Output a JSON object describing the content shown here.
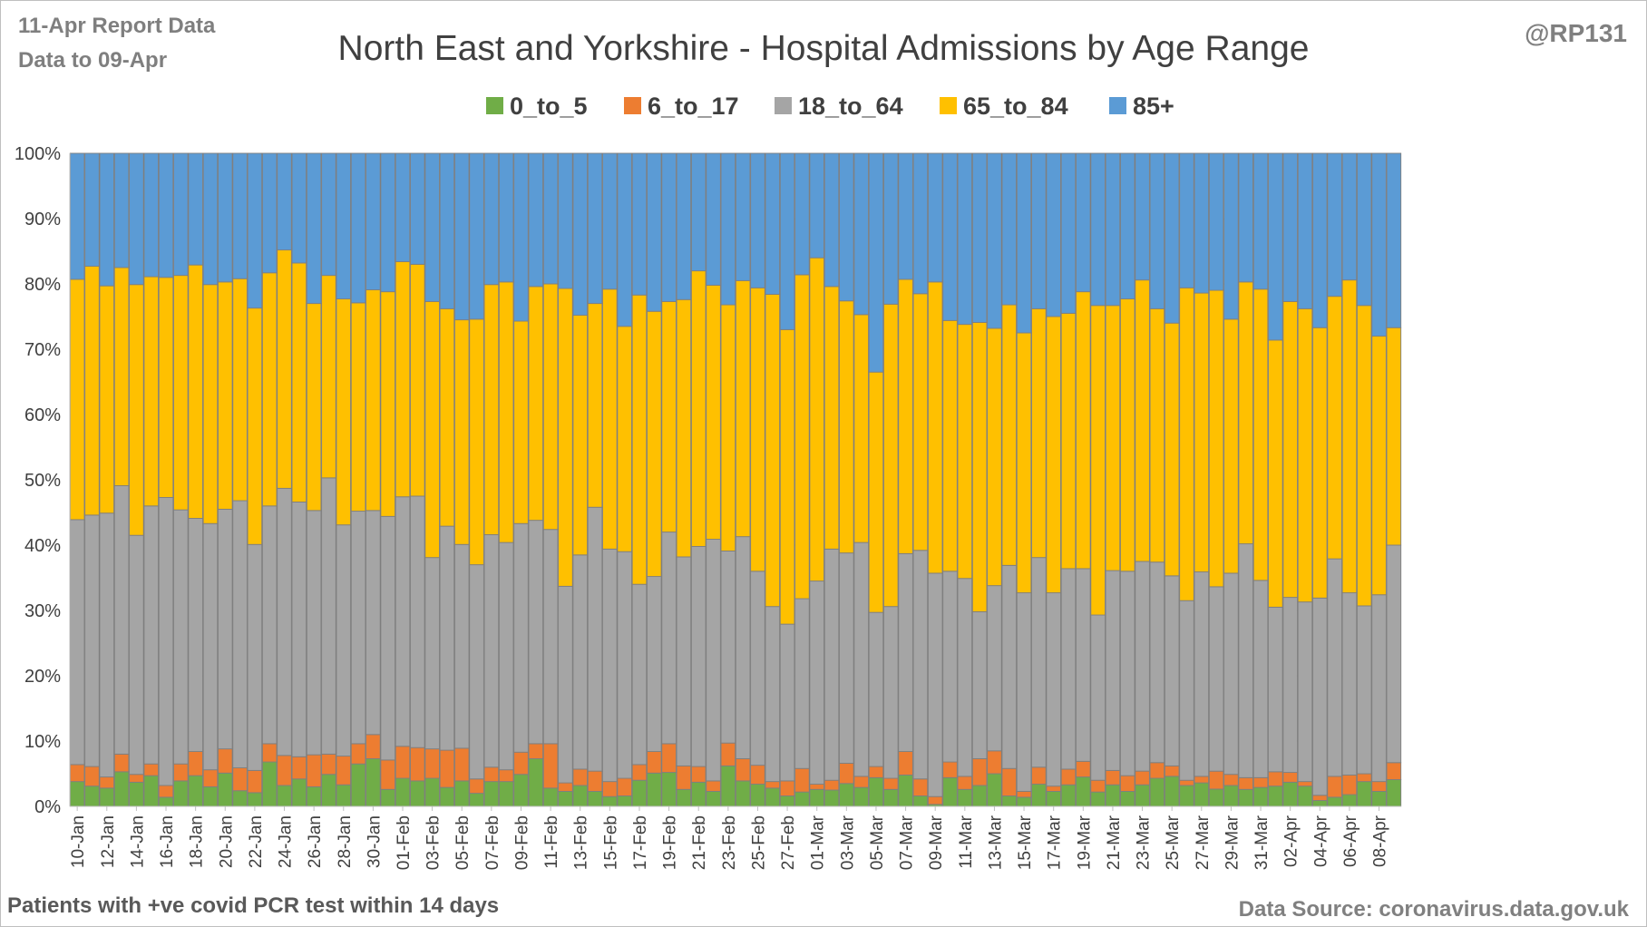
{
  "header": {
    "report_label": "11-Apr Report Data",
    "data_to_label": "Data to 09-Apr",
    "handle": "@RP131"
  },
  "footer": {
    "note": "Patients with  +ve covid PCR test within 14 days",
    "source": "Data Source: coronavirus.data.gov.uk"
  },
  "colors": {
    "0_to_5": "#70ad47",
    "6_to_17": "#ed7d31",
    "18_to_64": "#a5a5a5",
    "65_to_84": "#ffc000",
    "85+": "#5b9bd5"
  },
  "chart_data": {
    "type": "bar",
    "stacked": "percent",
    "title": "North East and Yorkshire - Hospital Admissions by Age Range",
    "legend_position": "top",
    "ylim": [
      0,
      100
    ],
    "y_ticks": [
      "0%",
      "10%",
      "20%",
      "30%",
      "40%",
      "50%",
      "60%",
      "70%",
      "80%",
      "90%",
      "100%"
    ],
    "grid": true,
    "categories": [
      "10-Jan",
      "11-Jan",
      "12-Jan",
      "13-Jan",
      "14-Jan",
      "15-Jan",
      "16-Jan",
      "17-Jan",
      "18-Jan",
      "19-Jan",
      "20-Jan",
      "21-Jan",
      "22-Jan",
      "23-Jan",
      "24-Jan",
      "25-Jan",
      "26-Jan",
      "27-Jan",
      "28-Jan",
      "29-Jan",
      "30-Jan",
      "31-Jan",
      "01-Feb",
      "02-Feb",
      "03-Feb",
      "04-Feb",
      "05-Feb",
      "06-Feb",
      "07-Feb",
      "08-Feb",
      "09-Feb",
      "10-Feb",
      "11-Feb",
      "12-Feb",
      "13-Feb",
      "14-Feb",
      "15-Feb",
      "16-Feb",
      "17-Feb",
      "18-Feb",
      "19-Feb",
      "20-Feb",
      "21-Feb",
      "22-Feb",
      "23-Feb",
      "24-Feb",
      "25-Feb",
      "26-Feb",
      "27-Feb",
      "28-Feb",
      "01-Mar",
      "02-Mar",
      "03-Mar",
      "04-Mar",
      "05-Mar",
      "06-Mar",
      "07-Mar",
      "08-Mar",
      "09-Mar",
      "10-Mar",
      "11-Mar",
      "12-Mar",
      "13-Mar",
      "14-Mar",
      "15-Mar",
      "16-Mar",
      "17-Mar",
      "18-Mar",
      "19-Mar",
      "20-Mar",
      "21-Mar",
      "22-Mar",
      "23-Mar",
      "24-Mar",
      "25-Mar",
      "26-Mar",
      "27-Mar",
      "28-Mar",
      "29-Mar",
      "30-Mar",
      "31-Mar",
      "01-Apr",
      "02-Apr",
      "03-Apr",
      "04-Apr",
      "05-Apr",
      "06-Apr",
      "07-Apr",
      "08-Apr",
      "09-Apr"
    ],
    "x_tick_labels": [
      "10-Jan",
      "12-Jan",
      "14-Jan",
      "16-Jan",
      "18-Jan",
      "20-Jan",
      "22-Jan",
      "24-Jan",
      "26-Jan",
      "28-Jan",
      "30-Jan",
      "01-Feb",
      "03-Feb",
      "05-Feb",
      "07-Feb",
      "09-Feb",
      "11-Feb",
      "13-Feb",
      "15-Feb",
      "17-Feb",
      "19-Feb",
      "21-Feb",
      "23-Feb",
      "25-Feb",
      "27-Feb",
      "01-Mar",
      "03-Mar",
      "05-Mar",
      "07-Mar",
      "09-Mar",
      "11-Mar",
      "13-Mar",
      "15-Mar",
      "17-Mar",
      "19-Mar",
      "21-Mar",
      "23-Mar",
      "25-Mar",
      "27-Mar",
      "29-Mar",
      "31-Mar",
      "02-Apr",
      "04-Apr",
      "06-Apr",
      "08-Apr"
    ],
    "series": [
      {
        "name": "0_to_5",
        "values": [
          3.8,
          3.1,
          2.8,
          5.3,
          3.7,
          4.7,
          1.4,
          3.9,
          4.7,
          3.0,
          5.1,
          2.4,
          2.1,
          6.8,
          3.2,
          4.2,
          3.0,
          4.9,
          3.3,
          6.5,
          7.3,
          2.6,
          4.3,
          3.9,
          4.3,
          2.9,
          3.9,
          2.0,
          3.8,
          3.8,
          4.9,
          7.3,
          2.8,
          2.3,
          3.2,
          2.3,
          1.5,
          1.6,
          4.0,
          5.1,
          5.2,
          2.6,
          3.7,
          2.3,
          6.2,
          3.9,
          3.4,
          2.8,
          1.6,
          2.2,
          2.6,
          2.5,
          3.5,
          2.9,
          4.4,
          2.6,
          4.8,
          1.6,
          0.3,
          4.4,
          2.6,
          3.2,
          5.0,
          1.6,
          1.4,
          3.4,
          2.3,
          3.3,
          4.5,
          2.2,
          3.3,
          2.3,
          3.3,
          4.3,
          4.6,
          3.2,
          3.6,
          2.7,
          3.2,
          2.6,
          2.9,
          3.1,
          3.7,
          3.1,
          0.9,
          1.4,
          1.8,
          3.8,
          2.3,
          4.1
        ]
      },
      {
        "name": "6_to_17",
        "values": [
          2.6,
          3.0,
          1.7,
          2.7,
          1.2,
          1.8,
          1.8,
          2.6,
          3.7,
          2.6,
          3.7,
          3.5,
          3.4,
          2.8,
          4.6,
          3.4,
          4.9,
          3.1,
          4.4,
          3.1,
          3.7,
          4.5,
          4.9,
          5.1,
          4.5,
          5.7,
          5.0,
          2.2,
          2.2,
          1.8,
          3.4,
          2.3,
          6.8,
          1.3,
          2.5,
          3.1,
          2.3,
          2.7,
          2.4,
          3.3,
          4.4,
          3.6,
          2.4,
          1.6,
          3.5,
          3.4,
          2.9,
          1.0,
          2.3,
          3.6,
          0.8,
          1.5,
          3.1,
          1.7,
          1.7,
          1.7,
          3.6,
          2.6,
          1.2,
          2.4,
          2.0,
          4.1,
          3.5,
          4.2,
          0.9,
          2.6,
          0.8,
          2.4,
          2.4,
          1.8,
          2.2,
          2.4,
          2.1,
          2.4,
          1.6,
          0.8,
          1.0,
          2.8,
          1.7,
          1.8,
          1.5,
          2.2,
          1.5,
          0.7,
          0.8,
          3.2,
          3.0,
          1.2,
          1.5,
          2.6
        ]
      },
      {
        "name": "18_to_64",
        "values": [
          37.5,
          38.5,
          40.4,
          41.1,
          36.6,
          39.5,
          44.1,
          38.9,
          35.7,
          37.7,
          36.7,
          40.9,
          34.6,
          36.4,
          40.9,
          39.0,
          37.4,
          42.3,
          35.4,
          35.6,
          34.3,
          37.3,
          38.2,
          38.5,
          29.3,
          34.3,
          31.2,
          32.8,
          35.6,
          34.8,
          35.0,
          34.2,
          32.8,
          30.1,
          32.8,
          40.4,
          35.6,
          34.7,
          27.6,
          26.8,
          32.4,
          32.0,
          33.7,
          37.0,
          29.4,
          34.0,
          29.7,
          26.8,
          24.0,
          26.0,
          31.1,
          35.4,
          32.2,
          35.8,
          23.6,
          26.3,
          30.3,
          35.0,
          34.2,
          29.2,
          30.3,
          22.5,
          25.3,
          31.1,
          30.4,
          32.1,
          29.6,
          30.7,
          29.5,
          25.3,
          30.6,
          31.3,
          32.1,
          30.7,
          29.1,
          27.5,
          31.3,
          28.8,
          30.8,
          35.8,
          30.2,
          25.2,
          26.8,
          27.5,
          30.2,
          33.3,
          27.9,
          25.7,
          28.6,
          33.3
        ]
      },
      {
        "name": "65_to_84",
        "values": [
          36.8,
          38.1,
          34.8,
          33.4,
          38.4,
          35.1,
          33.7,
          35.9,
          38.8,
          36.6,
          34.8,
          34.0,
          36.2,
          35.7,
          36.5,
          36.6,
          31.7,
          31.0,
          34.6,
          31.9,
          33.8,
          34.4,
          36.0,
          35.5,
          39.2,
          33.3,
          34.4,
          37.6,
          38.3,
          39.9,
          31.0,
          35.8,
          37.6,
          45.6,
          36.7,
          31.2,
          39.8,
          34.5,
          44.3,
          40.6,
          35.3,
          39.4,
          42.2,
          38.9,
          37.7,
          39.2,
          43.4,
          47.8,
          45.1,
          49.6,
          49.5,
          40.2,
          38.6,
          34.9,
          36.8,
          46.3,
          42.0,
          39.3,
          44.6,
          38.4,
          38.9,
          44.3,
          39.4,
          39.9,
          39.8,
          38.1,
          42.3,
          39.1,
          42.4,
          47.4,
          40.6,
          41.7,
          43.1,
          38.8,
          38.7,
          47.9,
          42.7,
          46.3,
          38.9,
          40.1,
          44.6,
          40.9,
          45.3,
          44.9,
          41.4,
          40.2,
          47.9,
          46.0,
          39.6,
          33.3
        ]
      },
      {
        "name": "85+",
        "values": [
          19.3,
          17.3,
          20.3,
          17.5,
          20.1,
          18.9,
          19.0,
          18.7,
          17.1,
          20.1,
          19.7,
          19.2,
          23.7,
          18.3,
          14.8,
          16.8,
          23.0,
          18.7,
          22.3,
          22.9,
          20.9,
          21.2,
          16.6,
          17.0,
          22.7,
          23.8,
          25.5,
          25.4,
          20.1,
          19.7,
          25.7,
          20.4,
          20.0,
          20.7,
          24.8,
          23.0,
          20.8,
          26.5,
          21.7,
          24.2,
          22.7,
          22.4,
          18.0,
          20.2,
          23.2,
          19.5,
          20.6,
          21.6,
          27.0,
          18.6,
          16.0,
          20.4,
          22.6,
          24.7,
          33.5,
          23.1,
          19.3,
          21.5,
          19.7,
          25.6,
          26.2,
          25.9,
          26.8,
          23.2,
          27.5,
          23.8,
          25.0,
          24.5,
          21.2,
          23.3,
          23.3,
          22.3,
          19.4,
          23.8,
          26.0,
          20.6,
          21.4,
          21.4,
          25.4,
          19.7,
          20.8,
          28.6,
          22.7,
          23.8,
          26.7,
          21.9,
          19.4,
          23.3,
          28.0,
          26.7
        ]
      }
    ]
  }
}
